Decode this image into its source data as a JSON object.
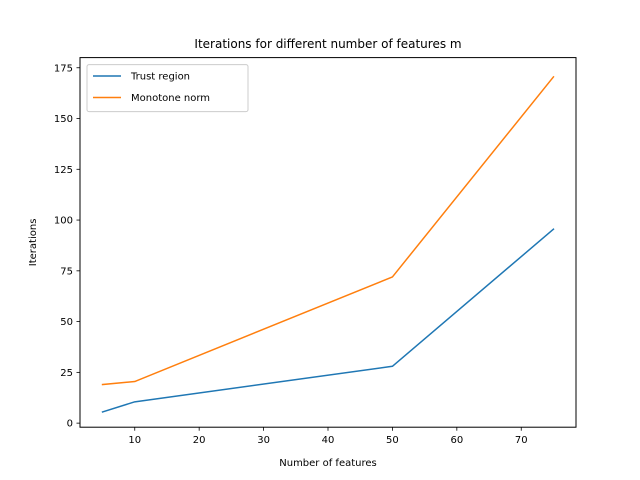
{
  "chart_data": {
    "type": "line",
    "title": "Iterations for different number of features m",
    "xlabel": "Number of features",
    "ylabel": "Iterations",
    "xlim": [
      1.5,
      78.5
    ],
    "ylim": [
      -2,
      180
    ],
    "xticks": [
      10,
      20,
      30,
      40,
      50,
      60,
      70
    ],
    "yticks": [
      0,
      25,
      50,
      75,
      100,
      125,
      150,
      175
    ],
    "grid": false,
    "legend_position": "top-left",
    "x": [
      5,
      10,
      50,
      75
    ],
    "series": [
      {
        "name": "Trust region",
        "color": "#1f77b4",
        "values": [
          5.5,
          10.5,
          28,
          95.5
        ]
      },
      {
        "name": "Monotone norm",
        "color": "#ff7f0e",
        "values": [
          19,
          20.5,
          72,
          170.5
        ]
      }
    ]
  }
}
